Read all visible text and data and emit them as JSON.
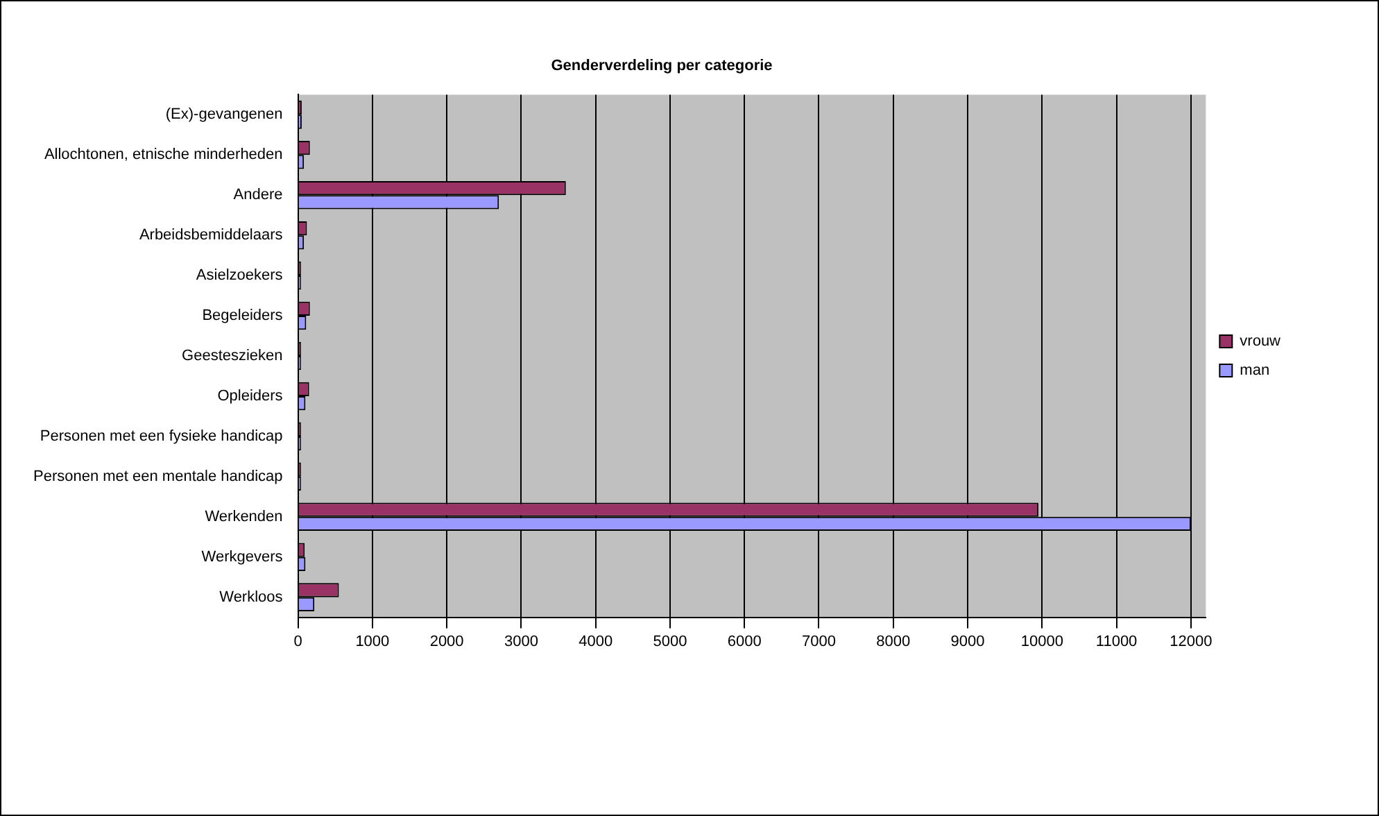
{
  "chart_data": {
    "type": "bar",
    "orientation": "horizontal",
    "title": "Genderverdeling per categorie",
    "categories": [
      "(Ex)-gevangenen",
      "Allochtonen, etnische minderheden",
      "Andere",
      "Arbeidsbemiddelaars",
      "Asielzoekers",
      "Begeleiders",
      "Geesteszieken",
      "Opleiders",
      "Personen met een fysieke handicap",
      "Personen met een mentale handicap",
      "Werkenden",
      "Werkgevers",
      "Werkloos"
    ],
    "series": [
      {
        "name": "vrouw",
        "color": "#993366",
        "values": [
          50,
          160,
          3600,
          120,
          40,
          160,
          40,
          150,
          40,
          40,
          9950,
          90,
          550
        ]
      },
      {
        "name": "man",
        "color": "#9999ff",
        "values": [
          50,
          80,
          2700,
          80,
          40,
          110,
          40,
          100,
          40,
          40,
          12000,
          100,
          220
        ]
      }
    ],
    "xlim": [
      0,
      12200
    ],
    "xticks": [
      0,
      1000,
      2000,
      3000,
      4000,
      5000,
      6000,
      7000,
      8000,
      9000,
      10000,
      11000,
      12000
    ],
    "grid": "x",
    "legend": "right"
  }
}
